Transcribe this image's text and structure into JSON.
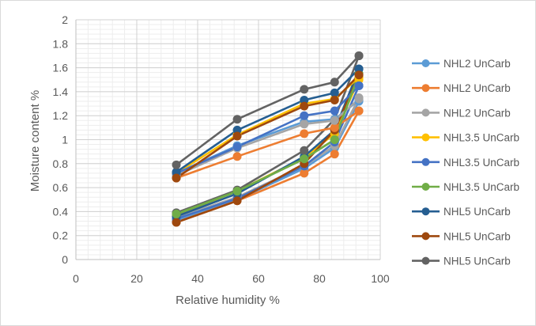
{
  "chart_data": {
    "type": "line",
    "title": "",
    "xlabel": "Relative humidity %",
    "ylabel": "Moisture content %",
    "xlim": [
      0,
      100
    ],
    "ylim": [
      0,
      2
    ],
    "x_ticks": [
      "0",
      "20",
      "40",
      "60",
      "80",
      "100"
    ],
    "y_ticks": [
      "0",
      "0.2",
      "0.4",
      "0.6",
      "0.8",
      "1",
      "1.2",
      "1.4",
      "1.6",
      "1.8",
      "2"
    ],
    "grid": true,
    "legend_position": "right",
    "x": [
      33,
      53,
      75,
      85,
      93
    ],
    "series": [
      {
        "name": "NHL2 UnCarb",
        "color": "#5B9BD5",
        "values": [
          0.72,
          0.95,
          1.15,
          1.17,
          1.33
        ]
      },
      {
        "name": "NHL2 UnCarb",
        "color": "#ED7D31",
        "values": [
          0.68,
          0.86,
          1.05,
          1.1,
          1.24
        ]
      },
      {
        "name": "NHL2 UnCarb",
        "color": "#A5A5A5",
        "values": [
          0.7,
          0.93,
          1.13,
          1.16,
          1.34
        ]
      },
      {
        "name": "NHL3.5 UnCarb",
        "color": "#FFC000",
        "values": [
          0.72,
          1.04,
          1.3,
          1.34,
          1.52
        ]
      },
      {
        "name": "NHL3.5 UnCarb",
        "color": "#4472C4",
        "values": [
          0.72,
          0.94,
          1.2,
          1.24,
          1.45
        ]
      },
      {
        "name": "NHL3.5 UnCarb",
        "color": "#70AD47",
        "values": [
          0.38,
          0.57,
          0.84,
          1.0,
          1.55
        ]
      },
      {
        "name": "NHL5 UnCarb",
        "color": "#255E91",
        "values": [
          0.73,
          1.08,
          1.33,
          1.39,
          1.59
        ]
      },
      {
        "name": "NHL5 UnCarb",
        "color": "#9E480E",
        "values": [
          0.68,
          1.03,
          1.28,
          1.33,
          1.54
        ]
      },
      {
        "name": "NHL5 UnCarb",
        "color": "#636363",
        "values": [
          0.79,
          1.17,
          1.42,
          1.48,
          1.7
        ]
      }
    ],
    "lower_series": [
      {
        "color": "#5B9BD5",
        "values": [
          0.33,
          0.5,
          0.76,
          0.93,
          1.32
        ]
      },
      {
        "color": "#ED7D31",
        "values": [
          0.31,
          0.49,
          0.72,
          0.88,
          1.24
        ]
      },
      {
        "color": "#A5A5A5",
        "values": [
          0.35,
          0.52,
          0.78,
          0.95,
          1.35
        ]
      },
      {
        "color": "#FFC000",
        "values": [
          0.37,
          0.57,
          0.85,
          1.05,
          1.5
        ]
      },
      {
        "color": "#4472C4",
        "values": [
          0.34,
          0.51,
          0.78,
          0.98,
          1.45
        ]
      },
      {
        "color": "#70AD47",
        "values": [
          0.38,
          0.57,
          0.84,
          1.0,
          1.55
        ]
      },
      {
        "color": "#255E91",
        "values": [
          0.36,
          0.55,
          0.86,
          1.08,
          1.59
        ]
      },
      {
        "color": "#9E480E",
        "values": [
          0.31,
          0.49,
          0.8,
          1.08,
          1.54
        ]
      },
      {
        "color": "#636363",
        "values": [
          0.39,
          0.58,
          0.91,
          1.17,
          1.7
        ]
      }
    ]
  }
}
